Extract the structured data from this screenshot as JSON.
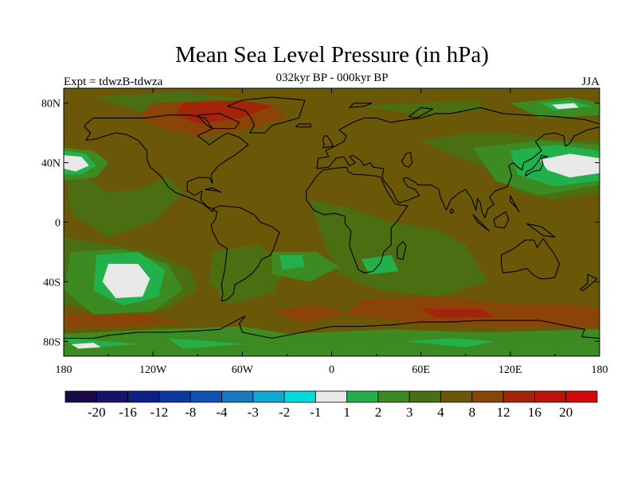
{
  "title": "Mean Sea Level Pressure (in hPa)",
  "subtitle": "032kyr BP - 000kyr BP",
  "left_label": "Expt = tdwzB-tdwza",
  "right_label": "JJA",
  "map": {
    "projection": "cylindrical-equidistant",
    "lon_range": [
      -180,
      180
    ],
    "lat_range": [
      -90,
      90
    ],
    "x_ticks": [
      {
        "value": -180,
        "label": "180"
      },
      {
        "value": -120,
        "label": "120W"
      },
      {
        "value": -60,
        "label": "60W"
      },
      {
        "value": 0,
        "label": "0"
      },
      {
        "value": 60,
        "label": "60E"
      },
      {
        "value": 120,
        "label": "120E"
      },
      {
        "value": 180,
        "label": "180"
      }
    ],
    "y_ticks": [
      {
        "value": 80,
        "label": "80N"
      },
      {
        "value": 40,
        "label": "40N"
      },
      {
        "value": 0,
        "label": "0"
      },
      {
        "value": -40,
        "label": "40S"
      },
      {
        "value": -80,
        "label": "80S"
      }
    ]
  },
  "colorbar": {
    "colors": [
      "#1a0a4a",
      "#14146e",
      "#0c208a",
      "#0a38a0",
      "#1052b4",
      "#1a78c2",
      "#10a8d2",
      "#00dcdc",
      "#e8e8e8",
      "#22b04a",
      "#3c8a22",
      "#4c6e12",
      "#6a5808",
      "#8a4408",
      "#a4240a",
      "#bc140a",
      "#d20808"
    ],
    "labels": [
      "-20",
      "-16",
      "-12",
      "-8",
      "-4",
      "-3",
      "-2",
      "-1",
      "1",
      "2",
      "3",
      "4",
      "8",
      "12",
      "16",
      "20"
    ]
  },
  "field_colors": {
    "background": "#6a5808",
    "low1": "#4c6e12",
    "low2": "#3c8a22",
    "low3": "#22b04a",
    "low4": "#e8e8e8",
    "high1": "#8a4408",
    "high2": "#a4240a"
  }
}
